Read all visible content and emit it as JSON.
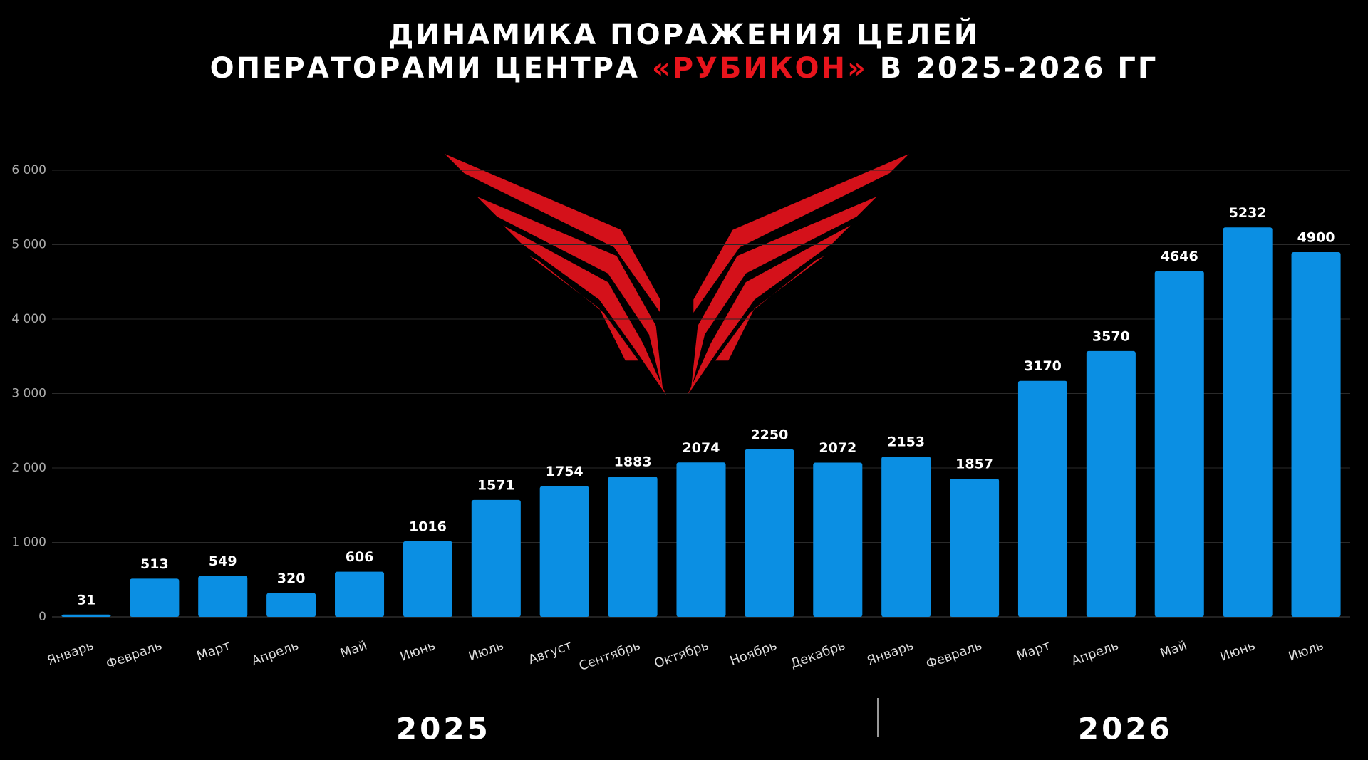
{
  "chart_data": {
    "type": "bar",
    "title_lines": [
      [
        "ДИНАМИКА ПОРАЖЕНИЯ ЦЕЛЕЙ"
      ],
      [
        "ОПЕРАТОРАМИ ЦЕНТРА ",
        "«РУБИКОН»",
        " В 2025-2026 ГГ"
      ]
    ],
    "categories": [
      "Январь",
      "Февраль",
      "Март",
      "Апрель",
      "Май",
      "Июнь",
      "Июль",
      "Август",
      "Сентябрь",
      "Октябрь",
      "Ноябрь",
      "Декабрь",
      "Январь",
      "Февраль",
      "Март",
      "Апрель",
      "Май",
      "Июнь",
      "Июль"
    ],
    "values": [
      31,
      513,
      549,
      320,
      606,
      1016,
      1571,
      1754,
      1883,
      2074,
      2250,
      2072,
      2153,
      1857,
      3170,
      3570,
      4646,
      5232,
      4900
    ],
    "color": "#0b8fe3",
    "ylim": [
      0,
      6000
    ],
    "yticks": [
      {
        "value": 0,
        "label": "0"
      },
      {
        "value": 1000,
        "label": "1 000"
      },
      {
        "value": 2000,
        "label": "2 000"
      },
      {
        "value": 3000,
        "label": "3 000"
      },
      {
        "value": 4000,
        "label": "4 000"
      },
      {
        "value": 5000,
        "label": "5 000"
      },
      {
        "value": 6000,
        "label": "6 000"
      }
    ],
    "grid": true,
    "year_groups": [
      {
        "label": "2025",
        "count": 12
      },
      {
        "label": "2026",
        "count": 7
      }
    ]
  }
}
